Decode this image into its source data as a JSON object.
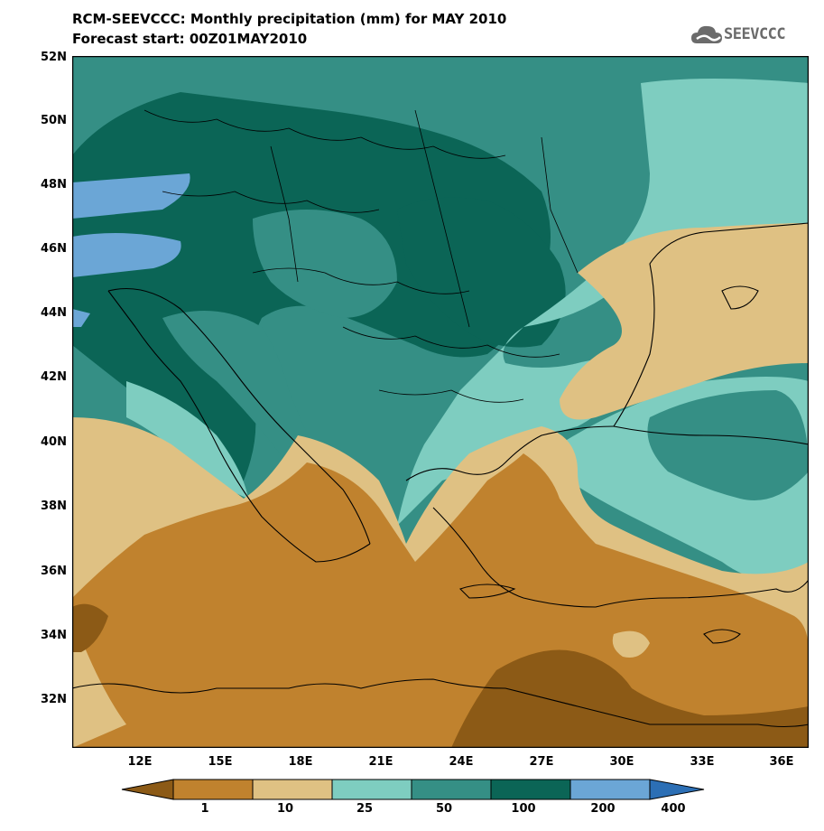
{
  "title_line1": "RCM-SEEVCCC: Monthly precipitation (mm) for MAY 2010",
  "title_line2": "Forecast start: 00Z01MAY2010",
  "logo_text": "SEEVCCC",
  "lat_labels": [
    "52N",
    "50N",
    "48N",
    "46N",
    "44N",
    "42N",
    "40N",
    "38N",
    "36N",
    "34N",
    "32N"
  ],
  "lon_labels": [
    "12E",
    "15E",
    "18E",
    "21E",
    "24E",
    "27E",
    "30E",
    "33E",
    "36E"
  ],
  "colorbar": {
    "labels": [
      "1",
      "10",
      "25",
      "50",
      "100",
      "200",
      "400"
    ],
    "colors": [
      "#8c5a16",
      "#c0822e",
      "#dfc183",
      "#7ecdc0",
      "#358f85",
      "#0b6556",
      "#6ba6d6",
      "#2c6fb5"
    ]
  }
}
